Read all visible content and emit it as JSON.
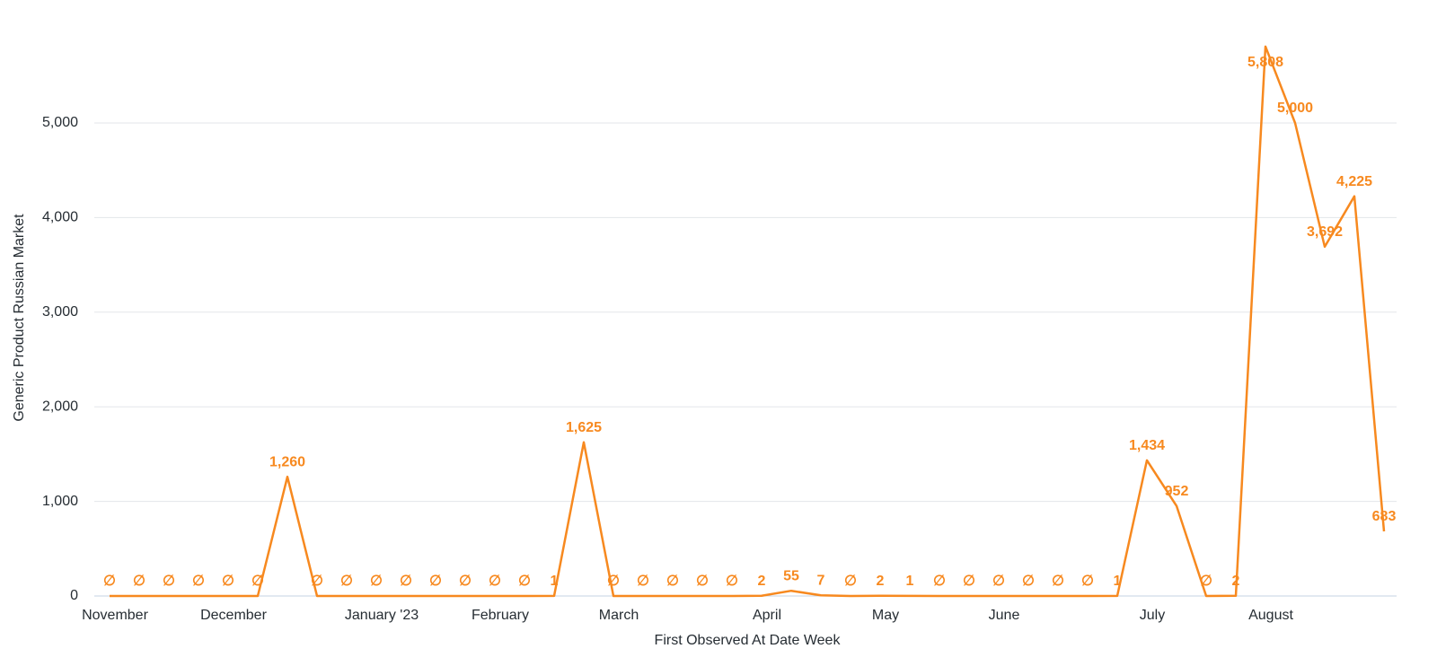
{
  "chart_data": {
    "type": "line",
    "x_label": "First Observed At Date Week",
    "y_label": "Generic Product Russian Market",
    "categories": [
      "November",
      null,
      null,
      null,
      "December",
      null,
      null,
      null,
      null,
      "January '23",
      null,
      null,
      null,
      "February",
      null,
      null,
      null,
      "March",
      null,
      null,
      null,
      null,
      "April",
      null,
      null,
      null,
      "May",
      null,
      null,
      null,
      "June",
      null,
      null,
      null,
      null,
      "July",
      null,
      null,
      null,
      "August",
      null,
      null,
      null,
      null
    ],
    "series": [
      {
        "name": "Generic Product Russian Market",
        "color": "#f7891f",
        "values": [
          0,
          0,
          0,
          0,
          0,
          0,
          1260,
          0,
          0,
          0,
          0,
          0,
          0,
          0,
          0,
          1,
          1625,
          0,
          0,
          0,
          0,
          0,
          2,
          55,
          7,
          0,
          2,
          1,
          0,
          0,
          0,
          0,
          0,
          0,
          1,
          1434,
          952,
          0,
          2,
          5808,
          5000,
          3692,
          4225,
          683
        ],
        "value_labels": [
          "∅",
          "∅",
          "∅",
          "∅",
          "∅",
          "∅",
          "1,260",
          "∅",
          "∅",
          "∅",
          "∅",
          "∅",
          "∅",
          "∅",
          "∅",
          "1",
          "1,625",
          "∅",
          "∅",
          "∅",
          "∅",
          "∅",
          "2",
          "55",
          "7",
          "∅",
          "2",
          "1",
          "∅",
          "∅",
          "∅",
          "∅",
          "∅",
          "∅",
          "1",
          "1,434",
          "952",
          "∅",
          "2",
          "5,808",
          "5,000",
          "3,692",
          "4,225",
          "683"
        ]
      }
    ],
    "ylim": [
      0,
      6000
    ],
    "yticks": [
      0,
      {
        "value": 1000,
        "label": "1,000"
      },
      {
        "value": 2000,
        "label": "2,000"
      },
      {
        "value": 3000,
        "label": "3,000"
      },
      {
        "value": 4000,
        "label": "4,000"
      },
      {
        "value": 5000,
        "label": "5,000"
      }
    ],
    "grid": true
  }
}
